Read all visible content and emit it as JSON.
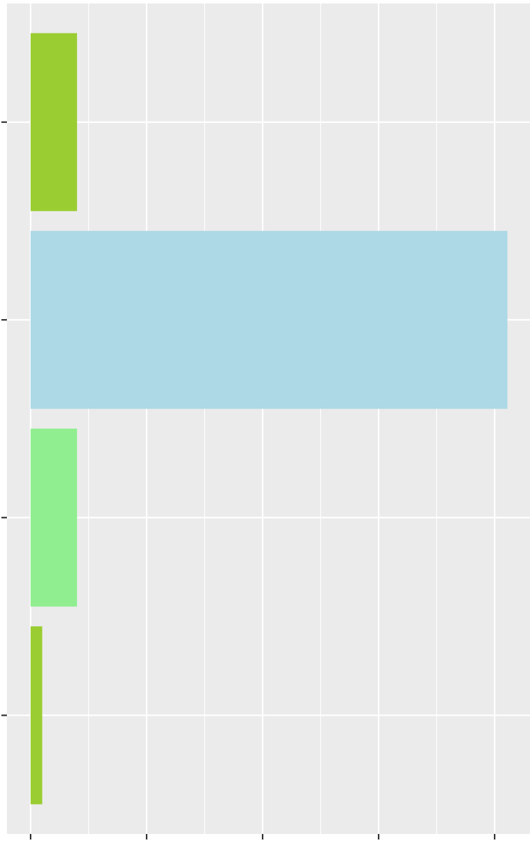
{
  "chart_data": {
    "type": "barh",
    "categories": [
      null,
      null,
      null,
      null
    ],
    "values": [
      0.4,
      4.11,
      0.4,
      0.1
    ],
    "colors": [
      "#9acd32",
      "#add8e6",
      "#90ee90",
      "#9acd32"
    ],
    "xlim": [
      -0.204,
      4.305
    ],
    "xticks": [
      0,
      1,
      2,
      3,
      4
    ],
    "xminor": [
      0.5,
      1.5,
      2.5,
      3.5
    ],
    "grid": true
  }
}
